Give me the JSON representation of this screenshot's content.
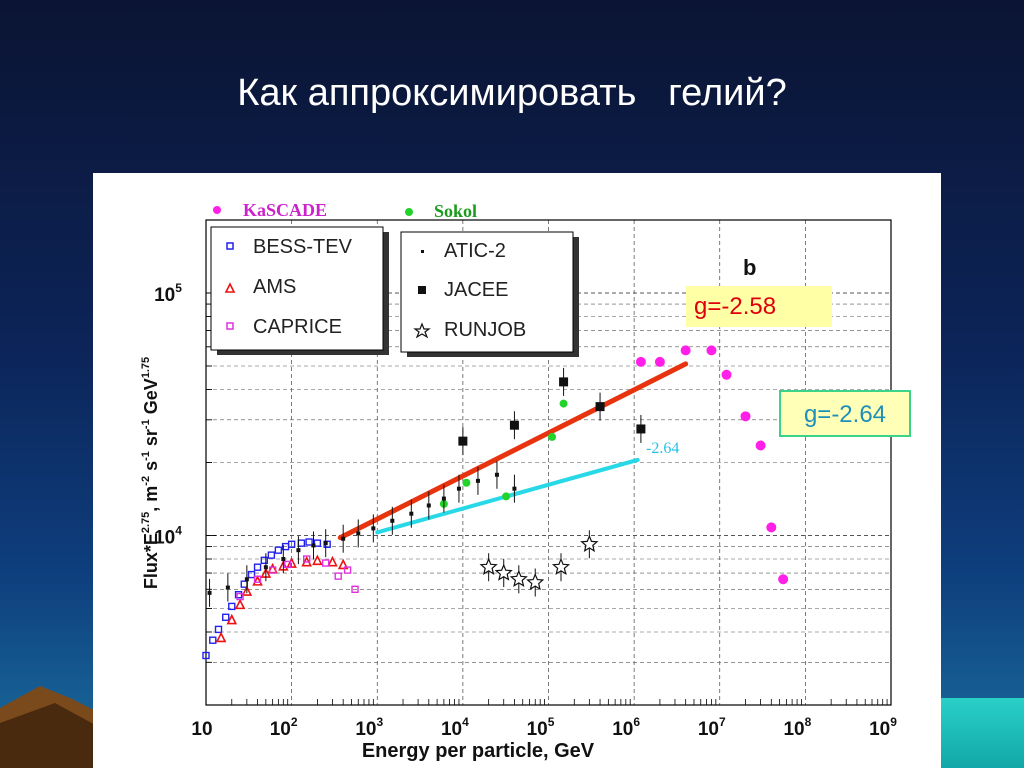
{
  "slide": {
    "title": "Как аппроксимировать   гелий?"
  },
  "annotations": {
    "slope_red_note": "g=-2.58",
    "slope_cyan_note": "g=-2.64",
    "slope_cyan_inline": "-2.64",
    "panel_letter": "b"
  },
  "colors": {
    "background_top": "#0b1433",
    "background_bottom": "#1a6f9e",
    "fit_red": "#e8340e",
    "fit_cyan": "#27d8e6",
    "kascade": "#ff1fe8",
    "sokol": "#22d42a",
    "bess": "#2222ee",
    "ams": "#ee1111",
    "caprice": "#e030e0"
  },
  "chart_data": {
    "type": "scatter",
    "xscale": "log",
    "yscale": "log",
    "xlim": [
      10,
      1000000000
    ],
    "ylim": [
      2000,
      200000
    ],
    "xlabel": "Energy per particle, GeV",
    "ylabel": "Flux*E^2.75, m^-2 s^-1 sr^-1 GeV^1.75",
    "x_ticks": [
      {
        "value": 10,
        "base": "10",
        "exp": ""
      },
      {
        "value": 100,
        "base": "10",
        "exp": "2"
      },
      {
        "value": 1000,
        "base": "10",
        "exp": "3"
      },
      {
        "value": 10000,
        "base": "10",
        "exp": "4"
      },
      {
        "value": 100000,
        "base": "10",
        "exp": "5"
      },
      {
        "value": 1000000,
        "base": "10",
        "exp": "6"
      },
      {
        "value": 10000000,
        "base": "10",
        "exp": "7"
      },
      {
        "value": 100000000,
        "base": "10",
        "exp": "8"
      },
      {
        "value": 1000000000,
        "base": "10",
        "exp": "9"
      }
    ],
    "y_ticks": [
      {
        "value": 10000,
        "base": "10",
        "exp": "4"
      },
      {
        "value": 100000,
        "base": "10",
        "exp": "5"
      }
    ],
    "grid": true,
    "series": [
      {
        "name": "KaSCADE",
        "marker": "dot-big",
        "color": "#ff1fe8",
        "points": [
          [
            1200000,
            52000
          ],
          [
            2000000,
            52000
          ],
          [
            4000000,
            58000
          ],
          [
            8000000,
            58000
          ],
          [
            12000000,
            46000
          ],
          [
            20000000,
            31000
          ],
          [
            30000000,
            23500
          ],
          [
            40000000,
            10800
          ],
          [
            55000000,
            6600
          ]
        ]
      },
      {
        "name": "Sokol",
        "marker": "dot",
        "color": "#22d42a",
        "points": [
          [
            11000,
            16500
          ],
          [
            32000,
            14500
          ],
          [
            150000,
            35000
          ],
          [
            110000,
            25500
          ],
          [
            6000,
            13500
          ]
        ]
      },
      {
        "name": "BESS-TEV",
        "marker": "square-open",
        "color": "#2222ee",
        "points": [
          [
            10,
            3200
          ],
          [
            12,
            3700
          ],
          [
            14,
            4100
          ],
          [
            17,
            4600
          ],
          [
            20,
            5100
          ],
          [
            24,
            5700
          ],
          [
            28,
            6300
          ],
          [
            34,
            6900
          ],
          [
            40,
            7400
          ],
          [
            48,
            7900
          ],
          [
            58,
            8300
          ],
          [
            70,
            8700
          ],
          [
            85,
            9000
          ],
          [
            100,
            9200
          ],
          [
            130,
            9300
          ],
          [
            160,
            9400
          ],
          [
            200,
            9300
          ],
          [
            260,
            9200
          ]
        ]
      },
      {
        "name": "AMS",
        "marker": "triangle-open",
        "color": "#ee1111",
        "points": [
          [
            15,
            3800
          ],
          [
            20,
            4500
          ],
          [
            25,
            5200
          ],
          [
            30,
            5900
          ],
          [
            40,
            6500
          ],
          [
            50,
            7000
          ],
          [
            60,
            7300
          ],
          [
            80,
            7500
          ],
          [
            100,
            7700
          ],
          [
            150,
            7800
          ],
          [
            200,
            7900
          ],
          [
            300,
            7800
          ],
          [
            400,
            7600
          ]
        ]
      },
      {
        "name": "CAPRICE",
        "marker": "square-open",
        "color": "#e030e0",
        "points": [
          [
            25,
            5600
          ],
          [
            40,
            6600
          ],
          [
            60,
            7200
          ],
          [
            90,
            7600
          ],
          [
            150,
            8000
          ],
          [
            250,
            7700
          ],
          [
            350,
            6800
          ],
          [
            450,
            7200
          ],
          [
            550,
            6000
          ]
        ]
      },
      {
        "name": "ATIC-2",
        "marker": "dot-small",
        "color": "#111111",
        "points": [
          [
            11,
            5800
          ],
          [
            18,
            6100
          ],
          [
            30,
            6600
          ],
          [
            50,
            7400
          ],
          [
            80,
            8000
          ],
          [
            120,
            8700
          ],
          [
            180,
            9100
          ],
          [
            250,
            9300
          ],
          [
            400,
            9700
          ],
          [
            600,
            10200
          ],
          [
            900,
            10700
          ],
          [
            1500,
            11500
          ],
          [
            2500,
            12300
          ],
          [
            4000,
            13300
          ],
          [
            6000,
            14200
          ],
          [
            9000,
            15600
          ],
          [
            15000,
            16800
          ],
          [
            25000,
            17800
          ],
          [
            40000,
            15600
          ]
        ]
      },
      {
        "name": "JACEE",
        "marker": "square-filled",
        "color": "#111111",
        "points": [
          [
            10000,
            24500
          ],
          [
            40000,
            28500
          ],
          [
            150000,
            43000
          ],
          [
            400000,
            34000
          ],
          [
            1200000,
            27500
          ]
        ]
      },
      {
        "name": "RUNJOB",
        "marker": "star-open",
        "color": "#111111",
        "points": [
          [
            20000,
            7400
          ],
          [
            30000,
            7000
          ],
          [
            45000,
            6600
          ],
          [
            70000,
            6400
          ],
          [
            140000,
            7400
          ],
          [
            300000,
            9200
          ]
        ]
      }
    ],
    "fits": [
      {
        "label": "g=-2.58",
        "color": "#e8340e",
        "from": [
          370,
          9800
        ],
        "to": [
          4000000,
          51000
        ]
      },
      {
        "label": "-2.64",
        "color": "#27d8e6",
        "from": [
          1000,
          10300
        ],
        "to": [
          1100000,
          20500
        ]
      }
    ]
  }
}
